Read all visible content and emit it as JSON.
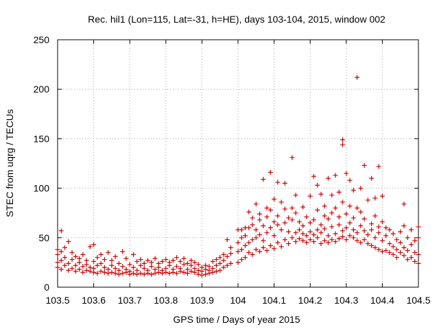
{
  "chart_data": {
    "type": "scatter",
    "title": "Rec. hil1 (Lon=115, Lat=-31, h=HE), days 103-104, 2015, window 002",
    "xlabel": "GPS time / Days of year 2015",
    "ylabel": "STEC from uqrg / TECUs",
    "xlim": [
      103.5,
      104.5
    ],
    "ylim": [
      0,
      250
    ],
    "xticks": [
      "103.5",
      "103.6",
      "103.7",
      "103.8",
      "103.9",
      "104",
      "104.1",
      "104.2",
      "104.3",
      "104.4",
      "104.5"
    ],
    "yticks": [
      "0",
      "50",
      "100",
      "150",
      "200",
      "250"
    ],
    "grid": true,
    "marker": "+",
    "colors": {
      "points": "#cc0000",
      "axes": "#000000",
      "grid": "#a0a0a0"
    },
    "points": [
      [
        103.5,
        20
      ],
      [
        103.5,
        25
      ],
      [
        103.5,
        33
      ],
      [
        103.5,
        38
      ],
      [
        103.51,
        18
      ],
      [
        103.51,
        27
      ],
      [
        103.51,
        36
      ],
      [
        103.51,
        57
      ],
      [
        103.52,
        22
      ],
      [
        103.52,
        30
      ],
      [
        103.52,
        40
      ],
      [
        103.53,
        17
      ],
      [
        103.53,
        24
      ],
      [
        103.53,
        46
      ],
      [
        103.54,
        19
      ],
      [
        103.54,
        28
      ],
      [
        103.54,
        35
      ],
      [
        103.55,
        16
      ],
      [
        103.55,
        22
      ],
      [
        103.55,
        31
      ],
      [
        103.56,
        18
      ],
      [
        103.56,
        25
      ],
      [
        103.56,
        29
      ],
      [
        103.57,
        15
      ],
      [
        103.57,
        21
      ],
      [
        103.57,
        33
      ],
      [
        103.58,
        17
      ],
      [
        103.58,
        23
      ],
      [
        103.58,
        27
      ],
      [
        103.59,
        16
      ],
      [
        103.59,
        20
      ],
      [
        103.59,
        41
      ],
      [
        103.6,
        15
      ],
      [
        103.6,
        19
      ],
      [
        103.6,
        26
      ],
      [
        103.6,
        43
      ],
      [
        103.61,
        14
      ],
      [
        103.61,
        22
      ],
      [
        103.61,
        30
      ],
      [
        103.62,
        16
      ],
      [
        103.62,
        24
      ],
      [
        103.62,
        33
      ],
      [
        103.63,
        15
      ],
      [
        103.63,
        20
      ],
      [
        103.63,
        28
      ],
      [
        103.64,
        14
      ],
      [
        103.64,
        18
      ],
      [
        103.64,
        35
      ],
      [
        103.65,
        15
      ],
      [
        103.65,
        22
      ],
      [
        103.65,
        27
      ],
      [
        103.66,
        14
      ],
      [
        103.66,
        19
      ],
      [
        103.66,
        31
      ],
      [
        103.67,
        13
      ],
      [
        103.67,
        17
      ],
      [
        103.67,
        24
      ],
      [
        103.68,
        14
      ],
      [
        103.68,
        21
      ],
      [
        103.68,
        36
      ],
      [
        103.69,
        15
      ],
      [
        103.69,
        18
      ],
      [
        103.69,
        29
      ],
      [
        103.7,
        13
      ],
      [
        103.7,
        16
      ],
      [
        103.7,
        23
      ],
      [
        103.71,
        14
      ],
      [
        103.71,
        20
      ],
      [
        103.71,
        33
      ],
      [
        103.72,
        13
      ],
      [
        103.72,
        17
      ],
      [
        103.72,
        26
      ],
      [
        103.73,
        14
      ],
      [
        103.73,
        22
      ],
      [
        103.73,
        28
      ],
      [
        103.74,
        13
      ],
      [
        103.74,
        19
      ],
      [
        103.74,
        24
      ],
      [
        103.75,
        14
      ],
      [
        103.75,
        17
      ],
      [
        103.75,
        27
      ],
      [
        103.76,
        13
      ],
      [
        103.76,
        21
      ],
      [
        103.76,
        25
      ],
      [
        103.77,
        14
      ],
      [
        103.77,
        18
      ],
      [
        103.77,
        29
      ],
      [
        103.78,
        15
      ],
      [
        103.78,
        20
      ],
      [
        103.78,
        24
      ],
      [
        103.79,
        14
      ],
      [
        103.79,
        17
      ],
      [
        103.79,
        26
      ],
      [
        103.8,
        15
      ],
      [
        103.8,
        19
      ],
      [
        103.8,
        28
      ],
      [
        103.81,
        14
      ],
      [
        103.81,
        22
      ],
      [
        103.81,
        25
      ],
      [
        103.82,
        15
      ],
      [
        103.82,
        18
      ],
      [
        103.82,
        27
      ],
      [
        103.83,
        14
      ],
      [
        103.83,
        21
      ],
      [
        103.83,
        30
      ],
      [
        103.84,
        16
      ],
      [
        103.84,
        19
      ],
      [
        103.84,
        26
      ],
      [
        103.85,
        15
      ],
      [
        103.85,
        23
      ],
      [
        103.85,
        29
      ],
      [
        103.86,
        14
      ],
      [
        103.86,
        18
      ],
      [
        103.86,
        24
      ],
      [
        103.87,
        16
      ],
      [
        103.87,
        22
      ],
      [
        103.87,
        27
      ],
      [
        103.88,
        15
      ],
      [
        103.88,
        19
      ],
      [
        103.88,
        25
      ],
      [
        103.89,
        13
      ],
      [
        103.89,
        17
      ],
      [
        103.89,
        23
      ],
      [
        103.9,
        12
      ],
      [
        103.9,
        16
      ],
      [
        103.9,
        20
      ],
      [
        103.91,
        13
      ],
      [
        103.91,
        18
      ],
      [
        103.91,
        22
      ],
      [
        103.92,
        14
      ],
      [
        103.92,
        17
      ],
      [
        103.92,
        21
      ],
      [
        103.93,
        15
      ],
      [
        103.93,
        19
      ],
      [
        103.93,
        26
      ],
      [
        103.94,
        16
      ],
      [
        103.94,
        22
      ],
      [
        103.94,
        28
      ],
      [
        103.95,
        17
      ],
      [
        103.95,
        24
      ],
      [
        103.95,
        30
      ],
      [
        103.96,
        20
      ],
      [
        103.96,
        27
      ],
      [
        103.96,
        33
      ],
      [
        103.97,
        22
      ],
      [
        103.97,
        31
      ],
      [
        103.97,
        48
      ],
      [
        103.98,
        24
      ],
      [
        103.98,
        34
      ],
      [
        103.98,
        40
      ],
      [
        104.0,
        25
      ],
      [
        104.0,
        36
      ],
      [
        104.0,
        45
      ],
      [
        104.0,
        58
      ],
      [
        104.01,
        28
      ],
      [
        104.01,
        38
      ],
      [
        104.01,
        50
      ],
      [
        104.01,
        58
      ],
      [
        104.02,
        30
      ],
      [
        104.02,
        42
      ],
      [
        104.02,
        52
      ],
      [
        104.02,
        60
      ],
      [
        104.03,
        35
      ],
      [
        104.03,
        45
      ],
      [
        104.03,
        60
      ],
      [
        104.03,
        76
      ],
      [
        104.04,
        33
      ],
      [
        104.04,
        48
      ],
      [
        104.04,
        63
      ],
      [
        104.04,
        70
      ],
      [
        104.05,
        38
      ],
      [
        104.05,
        50
      ],
      [
        104.05,
        58
      ],
      [
        104.05,
        84
      ],
      [
        104.06,
        36
      ],
      [
        104.06,
        53
      ],
      [
        104.06,
        68
      ],
      [
        104.06,
        74
      ],
      [
        104.07,
        40
      ],
      [
        104.07,
        47
      ],
      [
        104.07,
        62
      ],
      [
        104.07,
        109
      ],
      [
        104.08,
        37
      ],
      [
        104.08,
        55
      ],
      [
        104.08,
        71
      ],
      [
        104.08,
        80
      ],
      [
        104.09,
        42
      ],
      [
        104.09,
        60
      ],
      [
        104.09,
        78
      ],
      [
        104.09,
        116
      ],
      [
        104.1,
        39
      ],
      [
        104.1,
        52
      ],
      [
        104.1,
        66
      ],
      [
        104.1,
        89
      ],
      [
        104.11,
        45
      ],
      [
        104.11,
        63
      ],
      [
        104.11,
        72
      ],
      [
        104.11,
        106
      ],
      [
        104.12,
        41
      ],
      [
        104.12,
        58
      ],
      [
        104.12,
        86
      ],
      [
        104.13,
        48
      ],
      [
        104.13,
        65
      ],
      [
        104.13,
        79
      ],
      [
        104.13,
        105
      ],
      [
        104.14,
        44
      ],
      [
        104.14,
        56
      ],
      [
        104.14,
        70
      ],
      [
        104.15,
        50
      ],
      [
        104.15,
        68
      ],
      [
        104.15,
        80
      ],
      [
        104.15,
        131
      ],
      [
        104.16,
        46
      ],
      [
        104.16,
        55
      ],
      [
        104.16,
        75
      ],
      [
        104.16,
        93
      ],
      [
        104.17,
        49
      ],
      [
        104.17,
        58
      ],
      [
        104.17,
        66
      ],
      [
        104.18,
        47
      ],
      [
        104.18,
        54
      ],
      [
        104.18,
        62
      ],
      [
        104.18,
        81
      ],
      [
        104.19,
        45
      ],
      [
        104.19,
        52
      ],
      [
        104.19,
        71
      ],
      [
        104.2,
        48
      ],
      [
        104.2,
        56
      ],
      [
        104.2,
        65
      ],
      [
        104.2,
        92
      ],
      [
        104.21,
        46
      ],
      [
        104.21,
        53
      ],
      [
        104.21,
        68
      ],
      [
        104.21,
        112
      ],
      [
        104.22,
        50
      ],
      [
        104.22,
        58
      ],
      [
        104.22,
        78
      ],
      [
        104.22,
        103
      ],
      [
        104.23,
        44
      ],
      [
        104.23,
        55
      ],
      [
        104.23,
        63
      ],
      [
        104.23,
        94
      ],
      [
        104.24,
        47
      ],
      [
        104.24,
        59
      ],
      [
        104.24,
        72
      ],
      [
        104.24,
        82
      ],
      [
        104.25,
        45
      ],
      [
        104.25,
        52
      ],
      [
        104.25,
        69
      ],
      [
        104.25,
        110
      ],
      [
        104.26,
        48
      ],
      [
        104.26,
        61
      ],
      [
        104.26,
        75
      ],
      [
        104.26,
        93
      ],
      [
        104.27,
        46
      ],
      [
        104.27,
        54
      ],
      [
        104.27,
        80
      ],
      [
        104.27,
        113
      ],
      [
        104.28,
        49
      ],
      [
        104.28,
        63
      ],
      [
        104.28,
        71
      ],
      [
        104.28,
        96
      ],
      [
        104.29,
        51
      ],
      [
        104.29,
        57
      ],
      [
        104.29,
        86
      ],
      [
        104.29,
        149
      ],
      [
        104.29,
        144
      ],
      [
        104.3,
        48
      ],
      [
        104.3,
        60
      ],
      [
        104.3,
        74
      ],
      [
        104.3,
        115
      ],
      [
        104.31,
        52
      ],
      [
        104.31,
        65
      ],
      [
        104.31,
        82
      ],
      [
        104.31,
        108
      ],
      [
        104.32,
        50
      ],
      [
        104.32,
        58
      ],
      [
        104.32,
        70
      ],
      [
        104.32,
        98
      ],
      [
        104.33,
        47
      ],
      [
        104.33,
        55
      ],
      [
        104.33,
        80
      ],
      [
        104.33,
        212
      ],
      [
        104.34,
        45
      ],
      [
        104.34,
        62
      ],
      [
        104.34,
        76
      ],
      [
        104.34,
        100
      ],
      [
        104.35,
        48
      ],
      [
        104.35,
        57
      ],
      [
        104.35,
        69
      ],
      [
        104.35,
        123
      ],
      [
        104.36,
        44
      ],
      [
        104.36,
        53
      ],
      [
        104.36,
        88
      ],
      [
        104.37,
        42
      ],
      [
        104.37,
        58
      ],
      [
        104.37,
        64
      ],
      [
        104.37,
        110
      ],
      [
        104.38,
        40
      ],
      [
        104.38,
        50
      ],
      [
        104.38,
        72
      ],
      [
        104.38,
        90
      ],
      [
        104.39,
        38
      ],
      [
        104.39,
        55
      ],
      [
        104.39,
        61
      ],
      [
        104.39,
        122
      ],
      [
        104.4,
        36
      ],
      [
        104.4,
        47
      ],
      [
        104.4,
        66
      ],
      [
        104.4,
        92
      ],
      [
        104.41,
        37
      ],
      [
        104.41,
        52
      ],
      [
        104.41,
        60
      ],
      [
        104.42,
        35
      ],
      [
        104.42,
        44
      ],
      [
        104.42,
        58
      ],
      [
        104.43,
        33
      ],
      [
        104.43,
        41
      ],
      [
        104.43,
        54
      ],
      [
        104.44,
        30
      ],
      [
        104.44,
        38
      ],
      [
        104.44,
        48
      ],
      [
        104.45,
        35
      ],
      [
        104.45,
        45
      ],
      [
        104.45,
        56
      ],
      [
        104.46,
        32
      ],
      [
        104.46,
        40
      ],
      [
        104.46,
        62
      ],
      [
        104.46,
        84
      ],
      [
        104.47,
        28
      ],
      [
        104.47,
        37
      ],
      [
        104.47,
        50
      ],
      [
        104.48,
        30
      ],
      [
        104.48,
        43
      ],
      [
        104.48,
        58
      ],
      [
        104.49,
        26
      ],
      [
        104.49,
        35
      ],
      [
        104.49,
        47
      ],
      [
        104.5,
        24
      ],
      [
        104.5,
        33
      ],
      [
        104.5,
        50
      ],
      [
        104.5,
        61
      ]
    ]
  }
}
